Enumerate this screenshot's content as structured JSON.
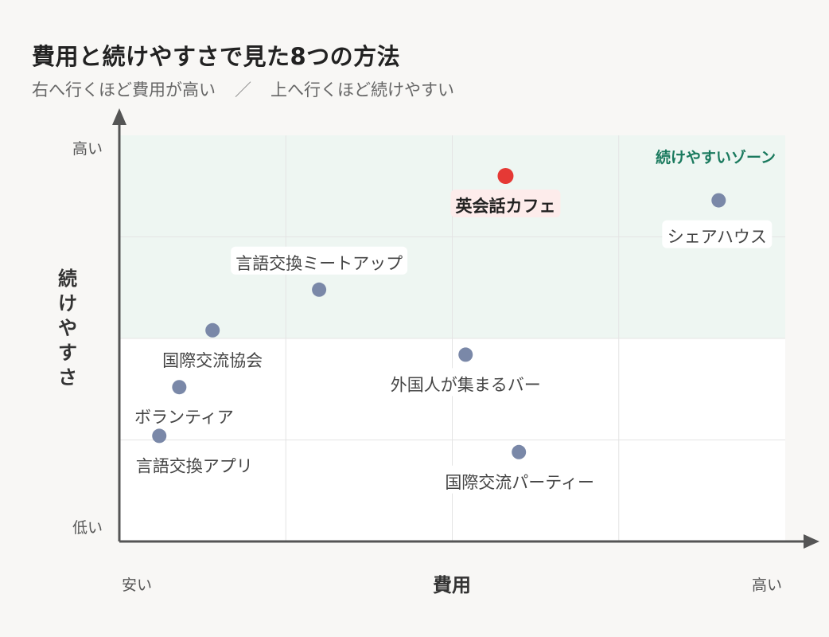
{
  "title": "費用と続けやすさで見た8つの方法",
  "subtitle": {
    "left": "右へ行くほど費用が高い",
    "separator": "／",
    "right": "上へ行くほど続けやすい"
  },
  "colors": {
    "zone_fill": "#eef6f2",
    "zone_text": "#1a7a5e",
    "highlight": "#e53935",
    "highlight_label_bg": "#fdeceb",
    "point": "#7a88a8",
    "axis": "#555555"
  },
  "chart_data": {
    "type": "scatter",
    "xlabel": "費用",
    "ylabel": "続けやすさ",
    "x_tick_labels": {
      "low": "安い",
      "high": "高い"
    },
    "y_tick_labels": {
      "low": "低い",
      "high": "高い"
    },
    "xlim": [
      0,
      10
    ],
    "ylim": [
      0,
      10
    ],
    "grid": true,
    "zone": {
      "label": "続けやすいゾーン",
      "y_from": 5,
      "y_to": 10
    },
    "points": [
      {
        "label": "英会話カフェ",
        "x": 5.8,
        "y": 9.0,
        "highlight": true
      },
      {
        "label": "シェアハウス",
        "x": 9.0,
        "y": 8.4
      },
      {
        "label": "言語交換ミートアップ",
        "x": 3.0,
        "y": 6.2
      },
      {
        "label": "国際交流協会",
        "x": 1.4,
        "y": 5.2
      },
      {
        "label": "外国人が集まるバー",
        "x": 5.2,
        "y": 4.6
      },
      {
        "label": "ボランティア",
        "x": 0.9,
        "y": 3.8
      },
      {
        "label": "言語交換アプリ",
        "x": 0.6,
        "y": 2.6
      },
      {
        "label": "国際交流パーティー",
        "x": 6.0,
        "y": 2.2
      }
    ]
  }
}
